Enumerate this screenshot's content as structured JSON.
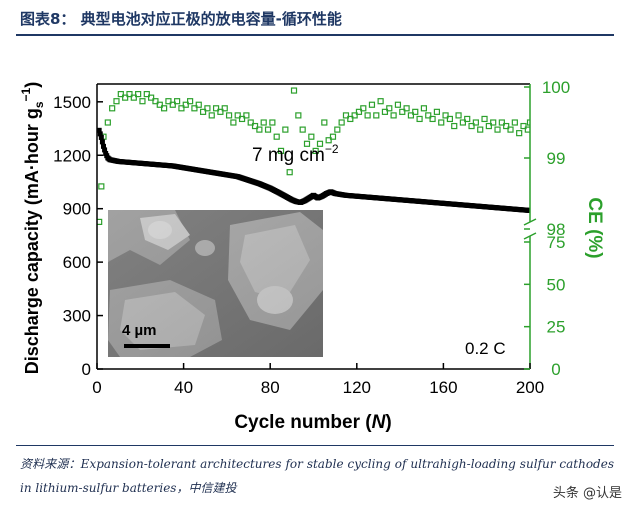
{
  "header": {
    "title": "图表8： 典型电池对应正极的放电容量-循环性能"
  },
  "chart_data": {
    "type": "scatter",
    "xlabel": "Cycle number (N)",
    "ylabel_left": "Discharge capacity (mA·hour gs⁻¹)",
    "ylabel_right": "CE (%)",
    "xlim": [
      0,
      200
    ],
    "ylim_left": [
      0,
      1600
    ],
    "x_ticks": [
      "0",
      "40",
      "80",
      "120",
      "160",
      "200"
    ],
    "y_left_ticks": [
      "0",
      "300",
      "600",
      "900",
      "1200",
      "1500"
    ],
    "y_right_upper_ticks": [
      "98",
      "99",
      "100"
    ],
    "y_right_lower_ticks": [
      "0",
      "25",
      "50",
      "75"
    ],
    "y_right_axis_break": "0–75 linear, then 98–100 expanded",
    "annotation_loading": "7 mg cm−2",
    "annotation_rate": "0.2 C",
    "inset_scale_bar": "4 µm",
    "series": [
      {
        "name": "Discharge capacity",
        "axis": "left",
        "color": "#000000",
        "marker": "filled-square",
        "points": [
          [
            1,
            1340
          ],
          [
            2,
            1300
          ],
          [
            3,
            1250
          ],
          [
            4,
            1210
          ],
          [
            5,
            1185
          ],
          [
            6,
            1175
          ],
          [
            8,
            1170
          ],
          [
            10,
            1165
          ],
          [
            15,
            1160
          ],
          [
            20,
            1155
          ],
          [
            25,
            1150
          ],
          [
            30,
            1145
          ],
          [
            35,
            1140
          ],
          [
            40,
            1130
          ],
          [
            45,
            1120
          ],
          [
            50,
            1110
          ],
          [
            55,
            1100
          ],
          [
            60,
            1090
          ],
          [
            65,
            1080
          ],
          [
            70,
            1060
          ],
          [
            75,
            1040
          ],
          [
            80,
            1015
          ],
          [
            84,
            990
          ],
          [
            87,
            970
          ],
          [
            90,
            950
          ],
          [
            92,
            940
          ],
          [
            94,
            935
          ],
          [
            96,
            945
          ],
          [
            98,
            960
          ],
          [
            100,
            975
          ],
          [
            102,
            960
          ],
          [
            104,
            970
          ],
          [
            106,
            985
          ],
          [
            108,
            995
          ],
          [
            110,
            985
          ],
          [
            115,
            975
          ],
          [
            120,
            970
          ],
          [
            130,
            960
          ],
          [
            140,
            950
          ],
          [
            150,
            940
          ],
          [
            160,
            930
          ],
          [
            170,
            920
          ],
          [
            180,
            910
          ],
          [
            190,
            900
          ],
          [
            200,
            890
          ]
        ]
      },
      {
        "name": "Coulombic efficiency",
        "axis": "right",
        "color": "#2ca02c",
        "marker": "open-square",
        "points": [
          [
            1,
            98.1
          ],
          [
            2,
            98.6
          ],
          [
            3,
            99.3
          ],
          [
            5,
            99.5
          ],
          [
            7,
            99.7
          ],
          [
            9,
            99.8
          ],
          [
            11,
            99.9
          ],
          [
            13,
            99.85
          ],
          [
            15,
            99.9
          ],
          [
            17,
            99.85
          ],
          [
            19,
            99.9
          ],
          [
            21,
            99.8
          ],
          [
            23,
            99.9
          ],
          [
            25,
            99.85
          ],
          [
            27,
            99.8
          ],
          [
            29,
            99.75
          ],
          [
            31,
            99.7
          ],
          [
            33,
            99.8
          ],
          [
            35,
            99.75
          ],
          [
            37,
            99.8
          ],
          [
            39,
            99.7
          ],
          [
            41,
            99.75
          ],
          [
            43,
            99.8
          ],
          [
            45,
            99.7
          ],
          [
            47,
            99.75
          ],
          [
            49,
            99.65
          ],
          [
            51,
            99.7
          ],
          [
            53,
            99.6
          ],
          [
            55,
            99.7
          ],
          [
            57,
            99.65
          ],
          [
            59,
            99.7
          ],
          [
            61,
            99.6
          ],
          [
            63,
            99.5
          ],
          [
            65,
            99.6
          ],
          [
            67,
            99.55
          ],
          [
            69,
            99.6
          ],
          [
            71,
            99.5
          ],
          [
            73,
            99.45
          ],
          [
            75,
            99.4
          ],
          [
            77,
            99.5
          ],
          [
            79,
            99.4
          ],
          [
            81,
            99.5
          ],
          [
            83,
            99.3
          ],
          [
            85,
            99.1
          ],
          [
            87,
            99.4
          ],
          [
            89,
            98.8
          ],
          [
            91,
            99.95
          ],
          [
            93,
            99.6
          ],
          [
            95,
            99.4
          ],
          [
            97,
            99.2
          ],
          [
            99,
            99.3
          ],
          [
            101,
            99.1
          ],
          [
            103,
            99.2
          ],
          [
            105,
            99.5
          ],
          [
            107,
            99.25
          ],
          [
            109,
            99.3
          ],
          [
            111,
            99.4
          ],
          [
            113,
            99.5
          ],
          [
            115,
            99.6
          ],
          [
            117,
            99.55
          ],
          [
            119,
            99.6
          ],
          [
            121,
            99.65
          ],
          [
            123,
            99.7
          ],
          [
            125,
            99.6
          ],
          [
            127,
            99.75
          ],
          [
            129,
            99.6
          ],
          [
            131,
            99.8
          ],
          [
            133,
            99.65
          ],
          [
            135,
            99.7
          ],
          [
            137,
            99.6
          ],
          [
            139,
            99.75
          ],
          [
            141,
            99.65
          ],
          [
            143,
            99.7
          ],
          [
            145,
            99.6
          ],
          [
            147,
            99.65
          ],
          [
            149,
            99.55
          ],
          [
            151,
            99.7
          ],
          [
            153,
            99.6
          ],
          [
            155,
            99.55
          ],
          [
            157,
            99.65
          ],
          [
            159,
            99.5
          ],
          [
            161,
            99.6
          ],
          [
            163,
            99.55
          ],
          [
            165,
            99.45
          ],
          [
            167,
            99.6
          ],
          [
            169,
            99.5
          ],
          [
            171,
            99.55
          ],
          [
            173,
            99.45
          ],
          [
            175,
            99.5
          ],
          [
            177,
            99.4
          ],
          [
            179,
            99.55
          ],
          [
            181,
            99.45
          ],
          [
            183,
            99.5
          ],
          [
            185,
            99.4
          ],
          [
            187,
            99.5
          ],
          [
            189,
            99.45
          ],
          [
            191,
            99.4
          ],
          [
            193,
            99.5
          ],
          [
            195,
            99.35
          ],
          [
            197,
            99.45
          ],
          [
            199,
            99.4
          ],
          [
            200,
            99.5
          ]
        ]
      }
    ]
  },
  "source": {
    "text": "资料来源：Expansion-tolerant architectures for stable cycling of ultrahigh-loading sulfur cathodes in lithium-sulfur batteries，中信建投"
  },
  "watermark": "头条 @认是"
}
